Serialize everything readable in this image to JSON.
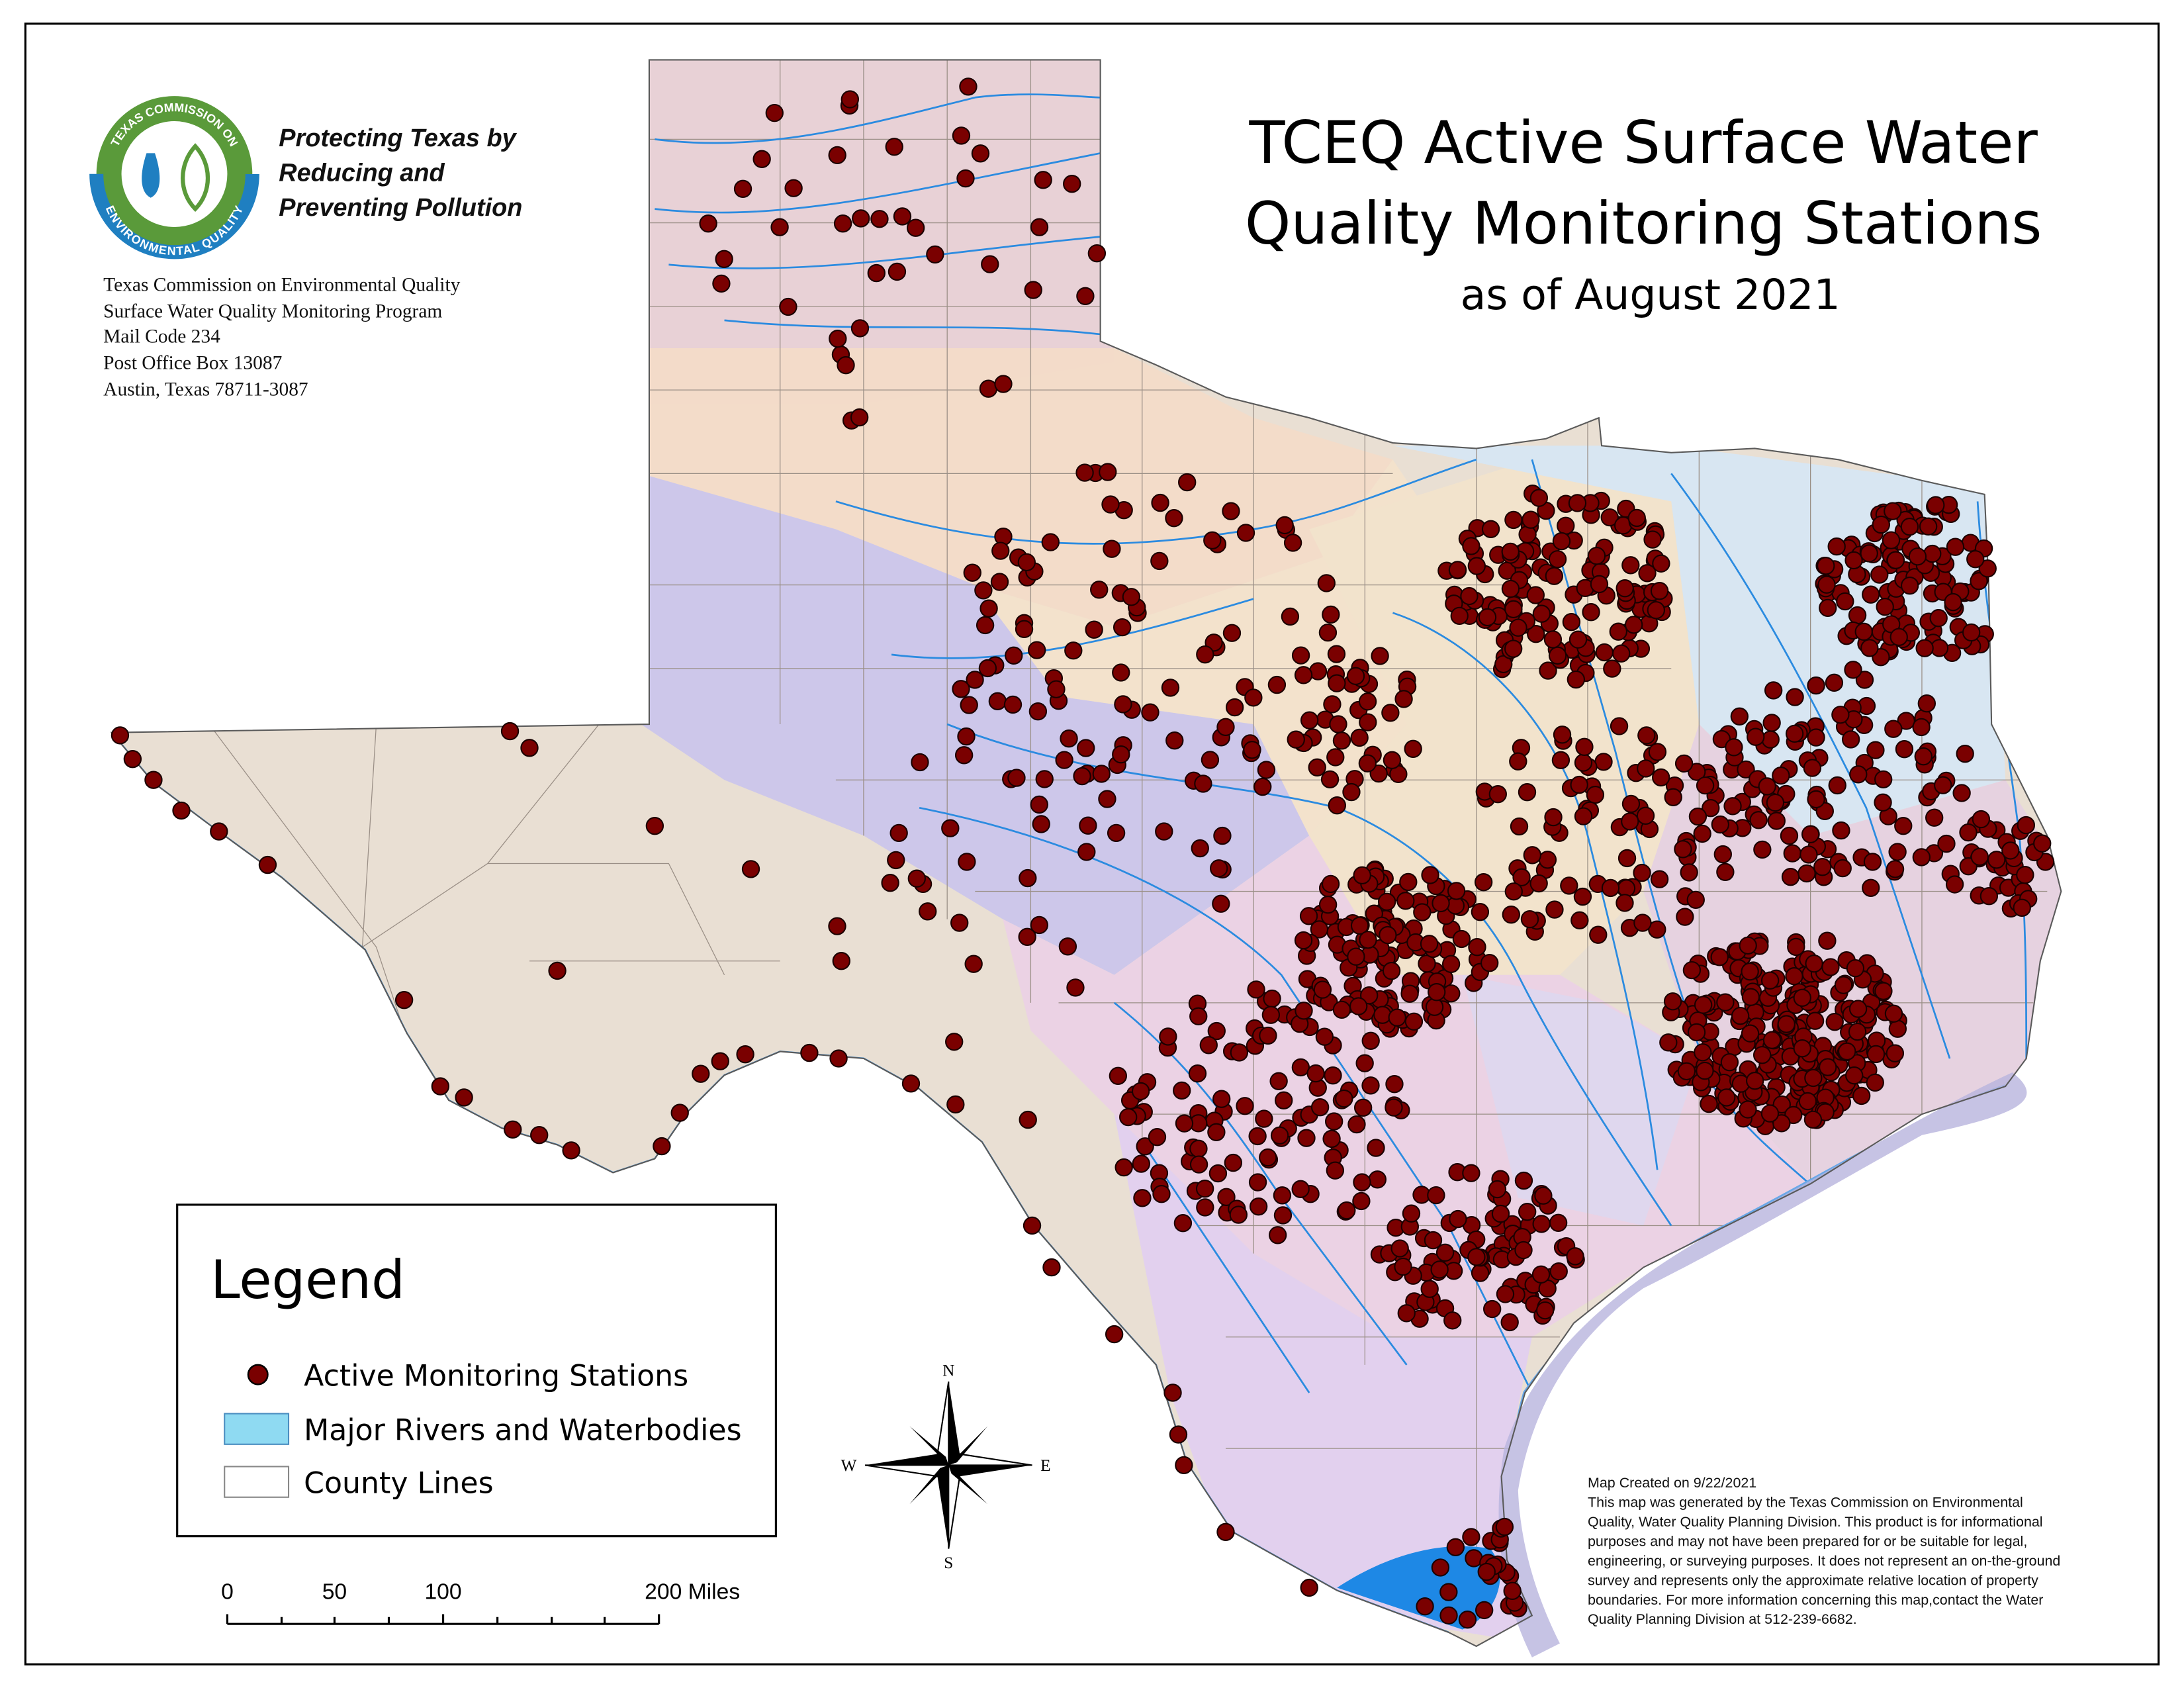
{
  "logo": {
    "ring_top": "TEXAS COMMISSION ON",
    "ring_bottom": "ENVIRONMENTAL QUALITY"
  },
  "tagline": [
    "Protecting Texas by",
    "Reducing and",
    "Preventing Pollution"
  ],
  "address": [
    "Texas Commission on Environmental Quality",
    "Surface Water Quality Monitoring Program",
    "Mail Code 234",
    "Post Office Box 13087",
    "Austin, Texas  78711-3087"
  ],
  "title": [
    "TCEQ Active Surface Water",
    "Quality Monitoring Stations"
  ],
  "subtitle": "as of August 2021",
  "legend": {
    "title": "Legend",
    "items": [
      "Active Monitoring Stations",
      "Major Rivers and Waterbodies",
      "County Lines"
    ]
  },
  "scale": {
    "labels": [
      "0",
      "50",
      "100",
      "200 Miles"
    ]
  },
  "compass": {
    "n": "N",
    "s": "S",
    "e": "E",
    "w": "W"
  },
  "note": [
    "Map Created on 9/22/2021",
    "This map was generated by the Texas Commission on Environmental",
    "Quality, Water Quality Planning Division. This product is for informational",
    "purposes and may not have been prepared for or be suitable for legal,",
    "engineering, or surveying purposes. It does not represent an on-the-ground",
    "survey and represents only the approximate relative location of property",
    "boundaries. For more information concerning this map,contact the Water",
    "Quality Planning Division at 512-239-6682."
  ]
}
